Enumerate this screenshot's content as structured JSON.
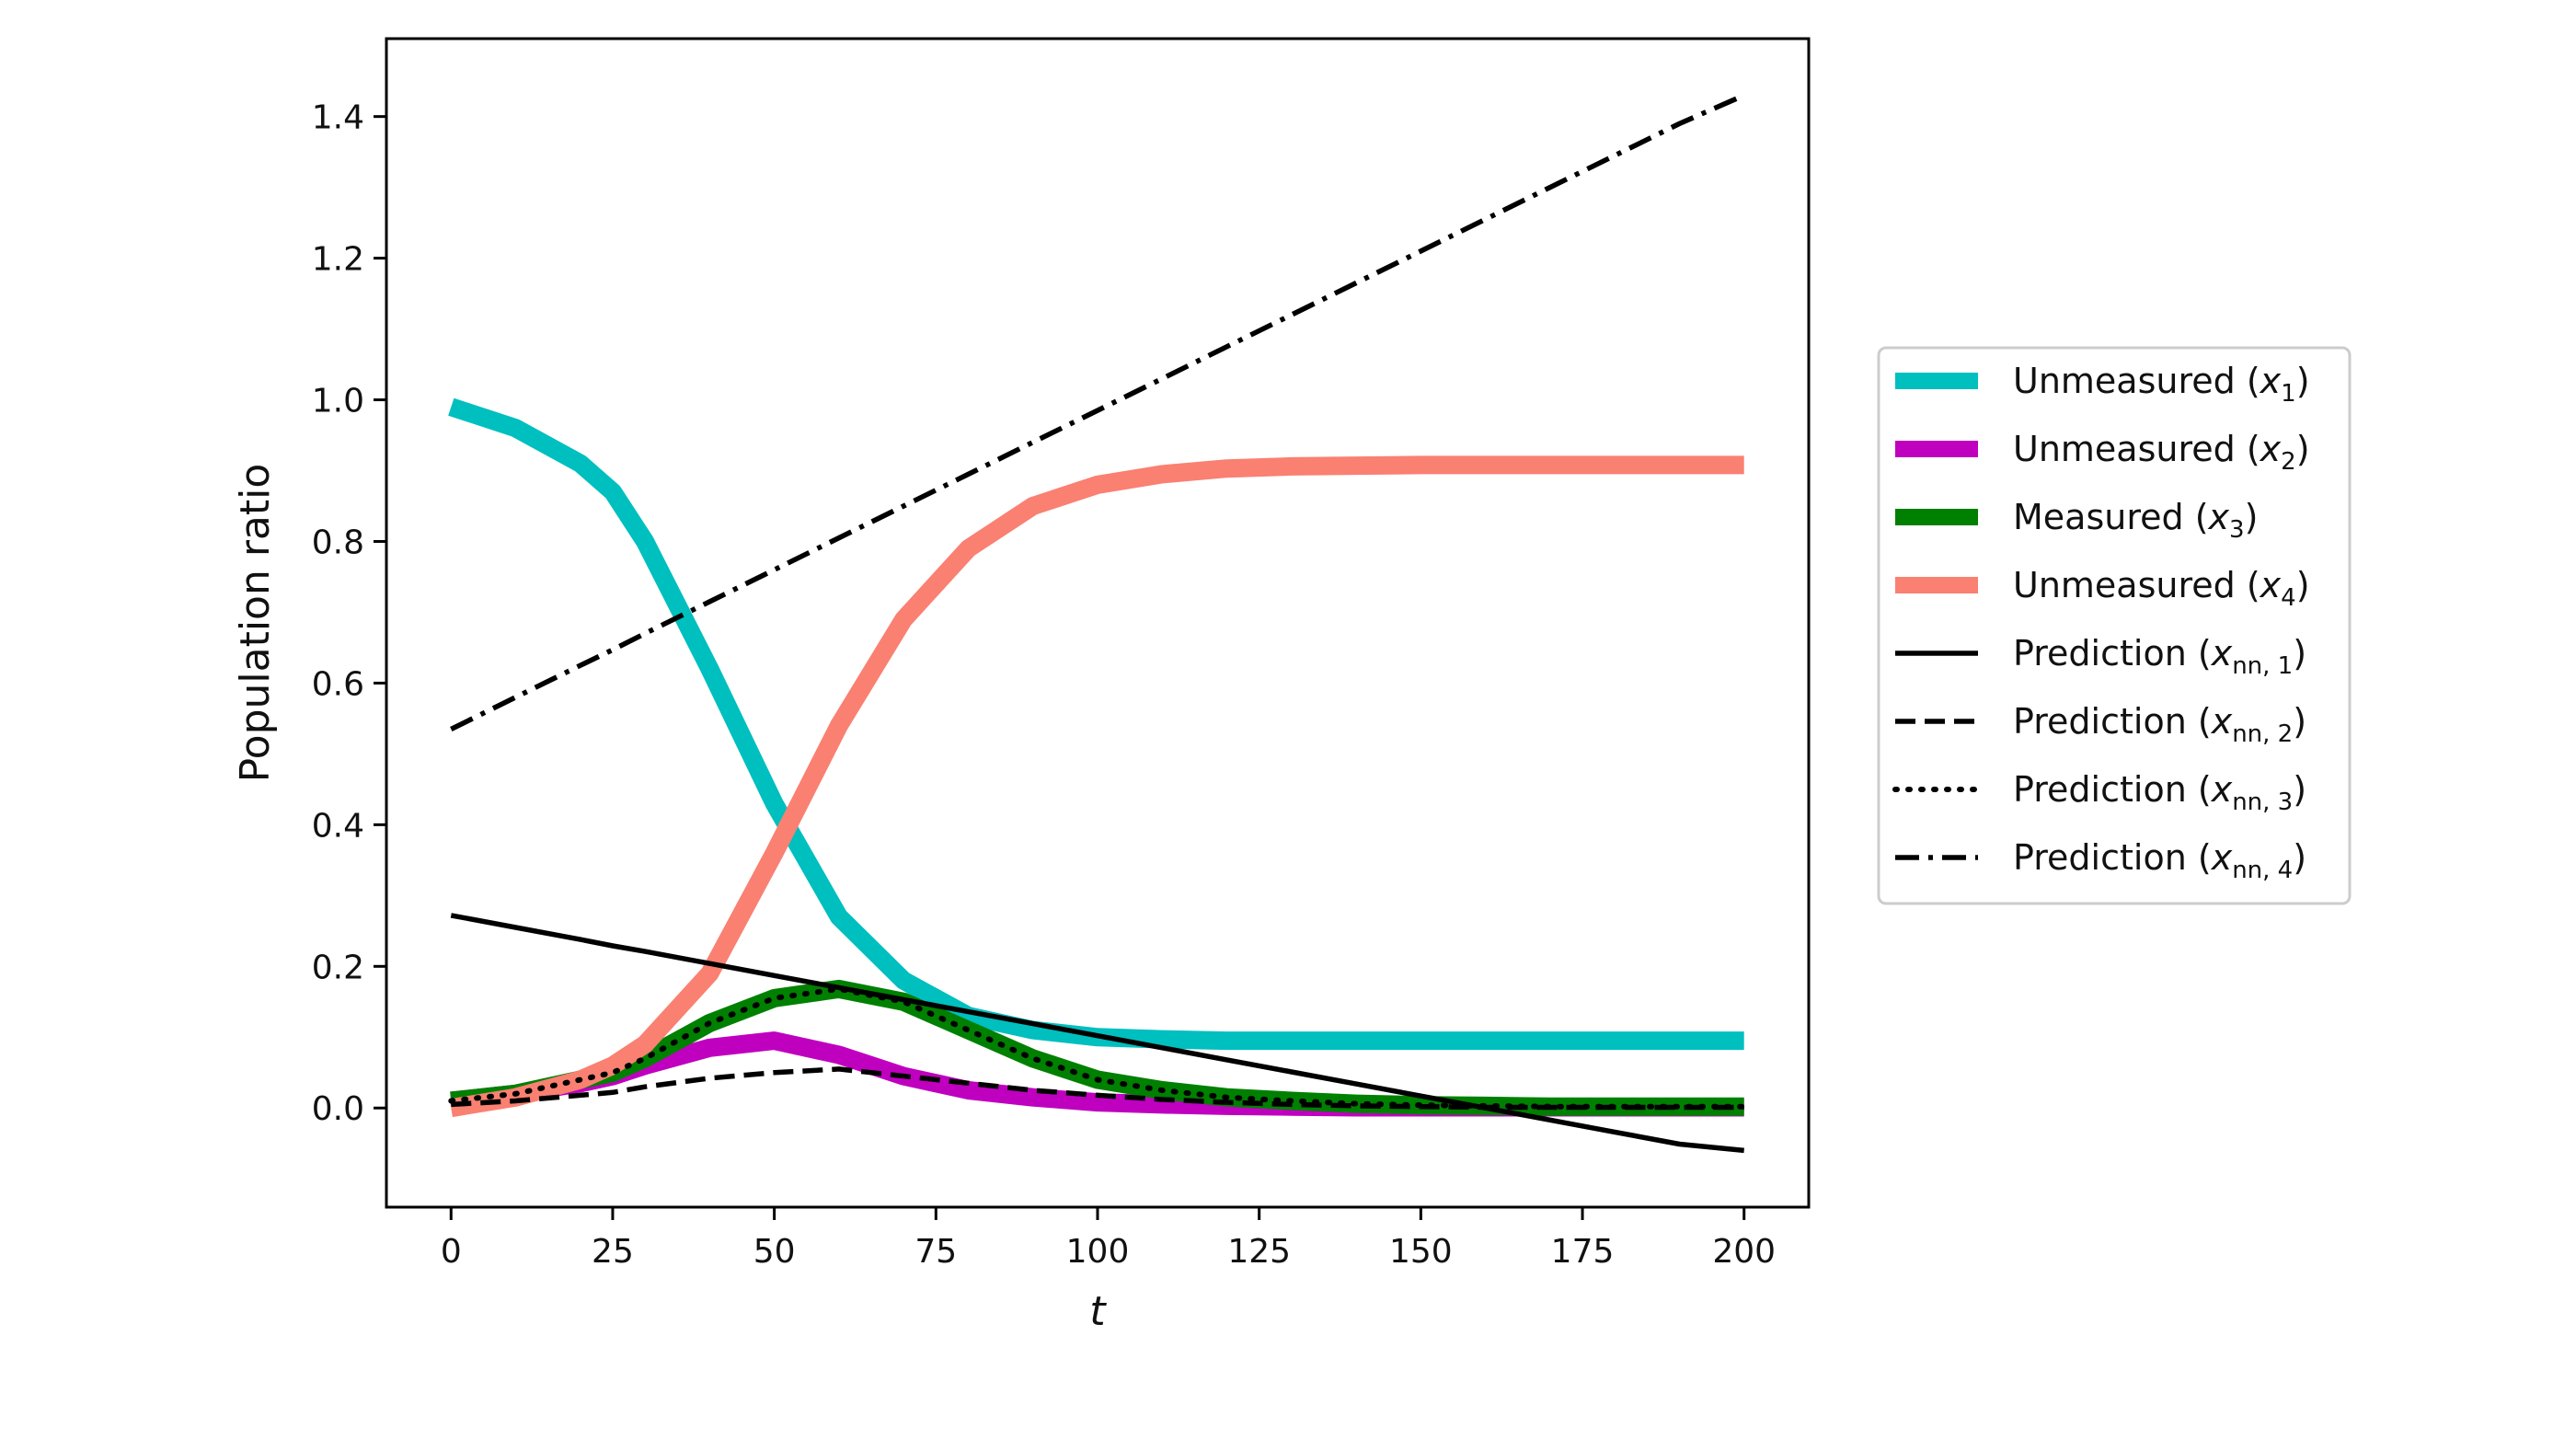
{
  "chart_data": {
    "type": "line",
    "title": "",
    "xlabel": "t",
    "ylabel": "Population ratio",
    "xlim": [
      -10,
      210
    ],
    "ylim": [
      -0.14,
      1.51
    ],
    "xticks": [
      0,
      25,
      50,
      75,
      100,
      125,
      150,
      175,
      200
    ],
    "yticks": [
      0.0,
      0.2,
      0.4,
      0.6,
      0.8,
      1.0,
      1.2,
      1.4
    ],
    "xtick_labels": [
      "0",
      "25",
      "50",
      "75",
      "100",
      "125",
      "150",
      "175",
      "200"
    ],
    "ytick_labels": [
      "0.0",
      "0.2",
      "0.4",
      "0.6",
      "0.8",
      "1.0",
      "1.2",
      "1.4"
    ],
    "grid": false,
    "legend_position": "outside-right",
    "x": [
      0,
      10,
      20,
      25,
      30,
      40,
      50,
      60,
      70,
      80,
      90,
      100,
      110,
      120,
      130,
      140,
      150,
      160,
      170,
      180,
      190,
      200
    ],
    "series": [
      {
        "name": "Unmeasured",
        "var": "x",
        "sub": "1",
        "color": "#00bfbf",
        "style": "solid-thick",
        "values": [
          0.99,
          0.96,
          0.91,
          0.87,
          0.8,
          0.62,
          0.43,
          0.27,
          0.18,
          0.13,
          0.11,
          0.1,
          0.097,
          0.095,
          0.095,
          0.095,
          0.095,
          0.095,
          0.095,
          0.095,
          0.095,
          0.095
        ]
      },
      {
        "name": "Unmeasured",
        "var": "x",
        "sub": "2",
        "color": "#bf00bf",
        "style": "solid-thick",
        "values": [
          0.01,
          0.02,
          0.035,
          0.045,
          0.06,
          0.085,
          0.095,
          0.075,
          0.045,
          0.025,
          0.015,
          0.008,
          0.005,
          0.003,
          0.002,
          0.001,
          0.001,
          0.001,
          0.001,
          0.001,
          0.001,
          0.001
        ]
      },
      {
        "name": "Measured",
        "var": "x",
        "sub": "3",
        "color": "#008000",
        "style": "solid-thick",
        "values": [
          0.01,
          0.02,
          0.04,
          0.05,
          0.07,
          0.12,
          0.155,
          0.168,
          0.15,
          0.11,
          0.07,
          0.04,
          0.025,
          0.015,
          0.01,
          0.006,
          0.004,
          0.003,
          0.002,
          0.002,
          0.002,
          0.002
        ]
      },
      {
        "name": "Unmeasured",
        "var": "x",
        "sub": "4",
        "color": "#fa8072",
        "style": "solid-thick",
        "values": [
          0.0,
          0.015,
          0.04,
          0.06,
          0.09,
          0.19,
          0.36,
          0.54,
          0.69,
          0.79,
          0.85,
          0.88,
          0.895,
          0.903,
          0.906,
          0.907,
          0.908,
          0.908,
          0.908,
          0.908,
          0.908,
          0.908
        ]
      },
      {
        "name": "Prediction",
        "var": "x",
        "sub": "nn, 1",
        "color": "#000000",
        "style": "solid",
        "values": [
          0.272,
          0.255,
          0.238,
          0.229,
          0.221,
          0.204,
          0.187,
          0.17,
          0.153,
          0.136,
          0.119,
          0.102,
          0.085,
          0.068,
          0.051,
          0.034,
          0.017,
          0.0,
          -0.017,
          -0.034,
          -0.051,
          -0.06
        ]
      },
      {
        "name": "Prediction",
        "var": "x",
        "sub": "nn, 2",
        "color": "#000000",
        "style": "dashed",
        "values": [
          0.005,
          0.01,
          0.018,
          0.022,
          0.03,
          0.042,
          0.05,
          0.055,
          0.045,
          0.035,
          0.025,
          0.018,
          0.012,
          0.008,
          0.005,
          0.003,
          0.002,
          0.001,
          0.001,
          0.001,
          0.001,
          0.001
        ]
      },
      {
        "name": "Prediction",
        "var": "x",
        "sub": "nn, 3",
        "color": "#000000",
        "style": "dotted",
        "values": [
          0.01,
          0.02,
          0.04,
          0.05,
          0.07,
          0.12,
          0.155,
          0.168,
          0.15,
          0.11,
          0.07,
          0.04,
          0.025,
          0.015,
          0.01,
          0.006,
          0.004,
          0.003,
          0.002,
          0.002,
          0.002,
          0.002
        ]
      },
      {
        "name": "Prediction",
        "var": "x",
        "sub": "nn, 4",
        "color": "#000000",
        "style": "dashdot",
        "values": [
          0.535,
          0.58,
          0.625,
          0.647,
          0.67,
          0.715,
          0.76,
          0.805,
          0.85,
          0.895,
          0.94,
          0.985,
          1.03,
          1.075,
          1.12,
          1.165,
          1.21,
          1.255,
          1.3,
          1.345,
          1.39,
          1.43
        ]
      }
    ]
  }
}
